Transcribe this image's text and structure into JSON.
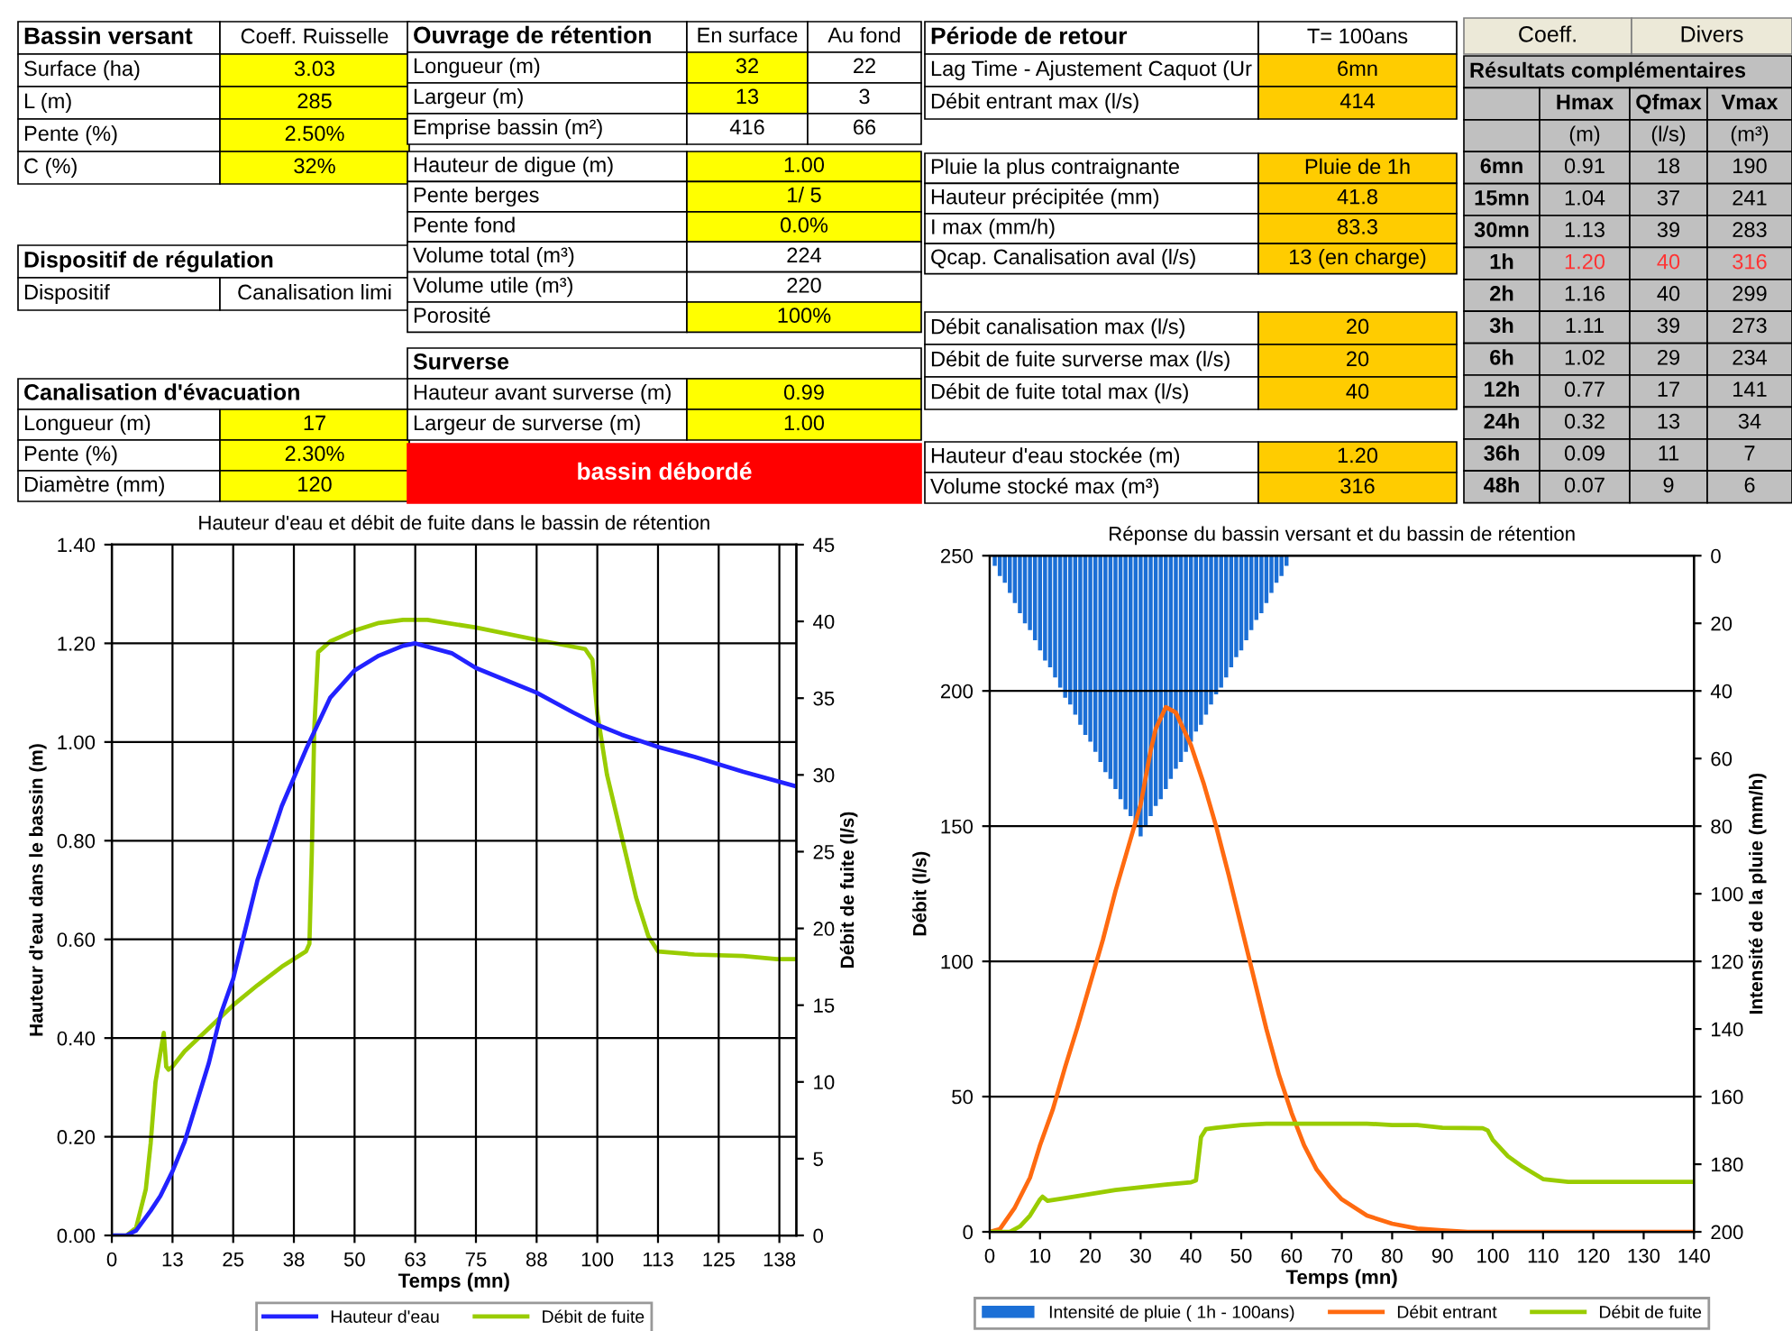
{
  "chart_data": [
    {
      "type": "other",
      "title": "Bassin versant",
      "annotations": [
        "Coeff. Ruisselle",
        "Surface (ha)",
        "3.03",
        "L (m)",
        "285",
        "Pente (%)",
        "2.50%",
        "C (%)",
        "32%"
      ]
    },
    {
      "type": "other",
      "title": "Dispositif de régulation",
      "annotations": [
        "Dispositif",
        "Canalisation limi"
      ]
    },
    {
      "type": "other",
      "title": "Canalisation d'évacuation",
      "annotations": [
        "Longueur (m)",
        "17",
        "Pente (%)",
        "2.30%",
        "Diamètre (mm)",
        "120"
      ]
    },
    {
      "type": "other",
      "title": "Ouvrage de rétention",
      "annotations": [
        "En surface",
        "Au fond",
        "Longueur (m)",
        "32",
        "22",
        "Largeur (m)",
        "13",
        "3",
        "Emprise bassin (m²)",
        "416",
        "66"
      ]
    },
    {
      "type": "other",
      "annotations": [
        "Hauteur de digue (m)",
        "1.00",
        "Pente berges",
        "1/ 5",
        "Pente fond",
        "0.0%",
        "Volume total (m³)",
        "224",
        "Volume utile (m³)",
        "220",
        "Porosité",
        "100%"
      ]
    },
    {
      "type": "other",
      "title": "Surverse",
      "annotations": [
        "Hauteur avant surverse (m)",
        "0.99",
        "Largeur de surverse (m)",
        "1.00"
      ]
    },
    {
      "type": "other",
      "title": "bassin débordé"
    },
    {
      "type": "other",
      "title": "Période de retour",
      "annotations": [
        "T= 100ans",
        "Lag Time - Ajustement Caquot (Ur",
        "6mn",
        "Débit entrant max (l/s)",
        "414"
      ]
    },
    {
      "type": "other",
      "annotations": [
        "Pluie la plus contraignante",
        "Pluie de 1h",
        "Hauteur précipitée (mm)",
        "41.8",
        "I max (mm/h)",
        "83.3",
        "Qcap. Canalisation aval (l/s)",
        "13 (en charge)"
      ]
    },
    {
      "type": "other",
      "annotations": [
        "Débit canalisation max (l/s)",
        "20",
        "Débit de fuite surverse max (l/s)",
        "20",
        "Débit de fuite total max (l/s)",
        "40"
      ]
    },
    {
      "type": "other",
      "annotations": [
        "Hauteur d'eau stockée (m)",
        "1.20",
        "Volume stocké max (m³)",
        "316"
      ]
    },
    {
      "type": "other",
      "annotations": [
        "Coeff.",
        "Divers"
      ]
    },
    {
      "type": "other",
      "title": "Résultats complémentaires",
      "annotations": [
        "Hmax",
        "Qfmax",
        "Vmax",
        "(m)",
        "(l/s)",
        "(m³)",
        "6mn",
        "0.91",
        "18",
        "190",
        "15mn",
        "1.04",
        "37",
        "241",
        "30mn",
        "1.13",
        "39",
        "283",
        "1h",
        "1.20",
        "40",
        "316",
        "2h",
        "1.16",
        "40",
        "299",
        "3h",
        "1.11",
        "39",
        "273",
        "6h",
        "1.02",
        "29",
        "234",
        "12h",
        "0.77",
        "17",
        "141",
        "24h",
        "0.32",
        "13",
        "34",
        "36h",
        "0.09",
        "11",
        "7",
        "48h",
        "0.07",
        "9",
        "6"
      ]
    },
    {
      "type": "line",
      "title": "Hauteur d'eau et débit de fuite dans le bassin de rétention",
      "xlabel": "Temps (mn)",
      "ylabel": "Hauteur d'eau dans le bassin (m)",
      "y2label": "Débit de fuite (l/s)",
      "xlim": [
        0,
        141
      ],
      "ylim": [
        0,
        1.4
      ],
      "y2lim": [
        0,
        45
      ],
      "xticks": [
        0,
        {
          "value": 12.5,
          "label": "13"
        },
        25,
        {
          "value": 37.5,
          "label": "38"
        },
        50,
        {
          "value": 62.5,
          "label": "63"
        },
        75,
        {
          "value": 87.5,
          "label": "88"
        },
        100,
        {
          "value": 112.5,
          "label": "113"
        },
        125,
        {
          "value": 137.5,
          "label": "138"
        }
      ],
      "yticks": [
        {
          "value": 0,
          "label": "0.00"
        },
        {
          "value": 0.2,
          "label": "0.20"
        },
        {
          "value": 0.4,
          "label": "0.40"
        },
        {
          "value": 0.6,
          "label": "0.60"
        },
        {
          "value": 0.8,
          "label": "0.80"
        },
        {
          "value": 1.0,
          "label": "1.00"
        },
        {
          "value": 1.2,
          "label": "1.20"
        },
        {
          "value": 1.4,
          "label": "1.40"
        }
      ],
      "y2ticks": [
        0,
        5,
        10,
        15,
        20,
        25,
        30,
        35,
        40,
        45
      ],
      "grid": true,
      "legend": "bottom",
      "series": [
        {
          "name": "Hauteur d'eau",
          "color": "#2222ff",
          "x": [
            0,
            3,
            5,
            8,
            10,
            12.5,
            15,
            20,
            22.5,
            25,
            30,
            35,
            40,
            45,
            50,
            55,
            60,
            62.5,
            70,
            75,
            80,
            87.5,
            95,
            100,
            105,
            112.5,
            120,
            125,
            130,
            141
          ],
          "values": [
            0,
            0,
            0.01,
            0.05,
            0.08,
            0.13,
            0.19,
            0.35,
            0.45,
            0.52,
            0.72,
            0.87,
            0.985,
            1.09,
            1.145,
            1.175,
            1.195,
            1.2,
            1.18,
            1.15,
            1.13,
            1.1,
            1.06,
            1.035,
            1.015,
            0.99,
            0.97,
            0.955,
            0.94,
            0.91
          ]
        },
        {
          "name": "Débit de fuite",
          "color": "#99cc00",
          "axis": "y2",
          "x": [
            0,
            3,
            5,
            7,
            8,
            9,
            10.7,
            11.2,
            11.7,
            12.5,
            15,
            20,
            25,
            30,
            35,
            40,
            40.7,
            41.2,
            41.7,
            42.5,
            45,
            50,
            55,
            60,
            65,
            75,
            87.5,
            97.5,
            99,
            100,
            102,
            105,
            108,
            110.5,
            112.5,
            120,
            130,
            137,
            141
          ],
          "values": [
            0,
            0,
            0.5,
            3,
            6,
            10,
            13.2,
            11,
            10.8,
            11,
            12,
            13.5,
            15,
            16.3,
            17.5,
            18.5,
            19,
            25,
            33,
            38,
            38.7,
            39.4,
            39.9,
            40.1,
            40.1,
            39.6,
            38.8,
            38.2,
            37.5,
            34,
            30,
            26,
            22,
            19.5,
            18.5,
            18.3,
            18.2,
            18,
            18
          ]
        }
      ]
    },
    {
      "type": "line",
      "title": "Réponse du bassin versant et du bassin de rétention",
      "xlabel": "Temps (mn)",
      "ylabel": "Débit (l/s)",
      "y2label": "Intensité de la pluie (mm/h)",
      "xlim": [
        0,
        140
      ],
      "ylim": [
        0,
        250
      ],
      "y2lim": [
        200,
        0
      ],
      "xticks": [
        0,
        10,
        20,
        30,
        40,
        50,
        60,
        70,
        80,
        90,
        100,
        110,
        120,
        130,
        140
      ],
      "yticks": [
        0,
        50,
        100,
        150,
        200,
        250
      ],
      "y2ticks": [
        0,
        20,
        40,
        60,
        80,
        100,
        120,
        140,
        160,
        180,
        200
      ],
      "grid": "y",
      "legend": "bottom",
      "series": [
        {
          "name": "Intensité de pluie ( 1h - 100ans)",
          "type": "bar",
          "axis": "y2",
          "color": "#1b6fd6",
          "x": [
            1,
            2,
            3,
            4,
            5,
            6,
            7,
            8,
            9,
            10,
            11,
            12,
            13,
            14,
            15,
            16,
            17,
            18,
            19,
            20,
            21,
            22,
            23,
            24,
            25,
            26,
            27,
            28,
            29,
            30,
            31,
            32,
            33,
            34,
            35,
            36,
            37,
            38,
            39,
            40,
            41,
            42,
            43,
            44,
            45,
            46,
            47,
            48,
            49,
            50,
            51,
            52,
            53,
            54,
            55,
            56,
            57,
            58,
            59
          ],
          "values": [
            3,
            6,
            8,
            11,
            14,
            17,
            20,
            22,
            25,
            28,
            31,
            33,
            36,
            39,
            42,
            44,
            47,
            50,
            53,
            55,
            58,
            61,
            64,
            66,
            69,
            72,
            75,
            77,
            80,
            83,
            80,
            77,
            74,
            72,
            69,
            66,
            63,
            61,
            58,
            55,
            52,
            50,
            47,
            44,
            41,
            39,
            36,
            33,
            30,
            28,
            25,
            22,
            19,
            17,
            14,
            11,
            8,
            6,
            3
          ]
        },
        {
          "name": "Débit entrant",
          "color": "#ff6a10",
          "x": [
            0,
            2,
            5,
            8,
            10,
            12.5,
            15,
            17.5,
            20,
            22.5,
            25,
            27.5,
            30,
            32,
            33,
            35,
            37,
            40,
            42.5,
            45,
            47.5,
            50,
            52.5,
            55,
            57.5,
            60,
            62.5,
            65,
            67.5,
            70,
            75,
            80,
            85,
            90,
            95,
            140
          ],
          "values": [
            0,
            1,
            9,
            20,
            32,
            45,
            61,
            76,
            92,
            108,
            126,
            142,
            158,
            178,
            186,
            194,
            192,
            180,
            166,
            150,
            132,
            113,
            94,
            75,
            58,
            44,
            32,
            23,
            17,
            12,
            6,
            3,
            1.2,
            0.6,
            0,
            0
          ]
        },
        {
          "name": "Débit de fuite",
          "color": "#99cc00",
          "x": [
            0,
            4,
            6,
            8,
            10,
            10.5,
            11.5,
            15,
            20,
            25,
            30,
            35,
            40,
            41,
            42,
            43,
            45,
            50,
            55,
            75,
            80,
            85,
            90,
            98,
            99,
            100,
            103,
            106,
            110,
            115,
            140
          ],
          "values": [
            0,
            0,
            2,
            6,
            12,
            13,
            11.5,
            12.5,
            14,
            15.5,
            16.5,
            17.5,
            18.3,
            19,
            35,
            38,
            38.5,
            39.5,
            40,
            40,
            39.5,
            39.5,
            38.5,
            38.3,
            37.5,
            34,
            28,
            24,
            19.5,
            18.5,
            18.5
          ]
        }
      ]
    }
  ]
}
